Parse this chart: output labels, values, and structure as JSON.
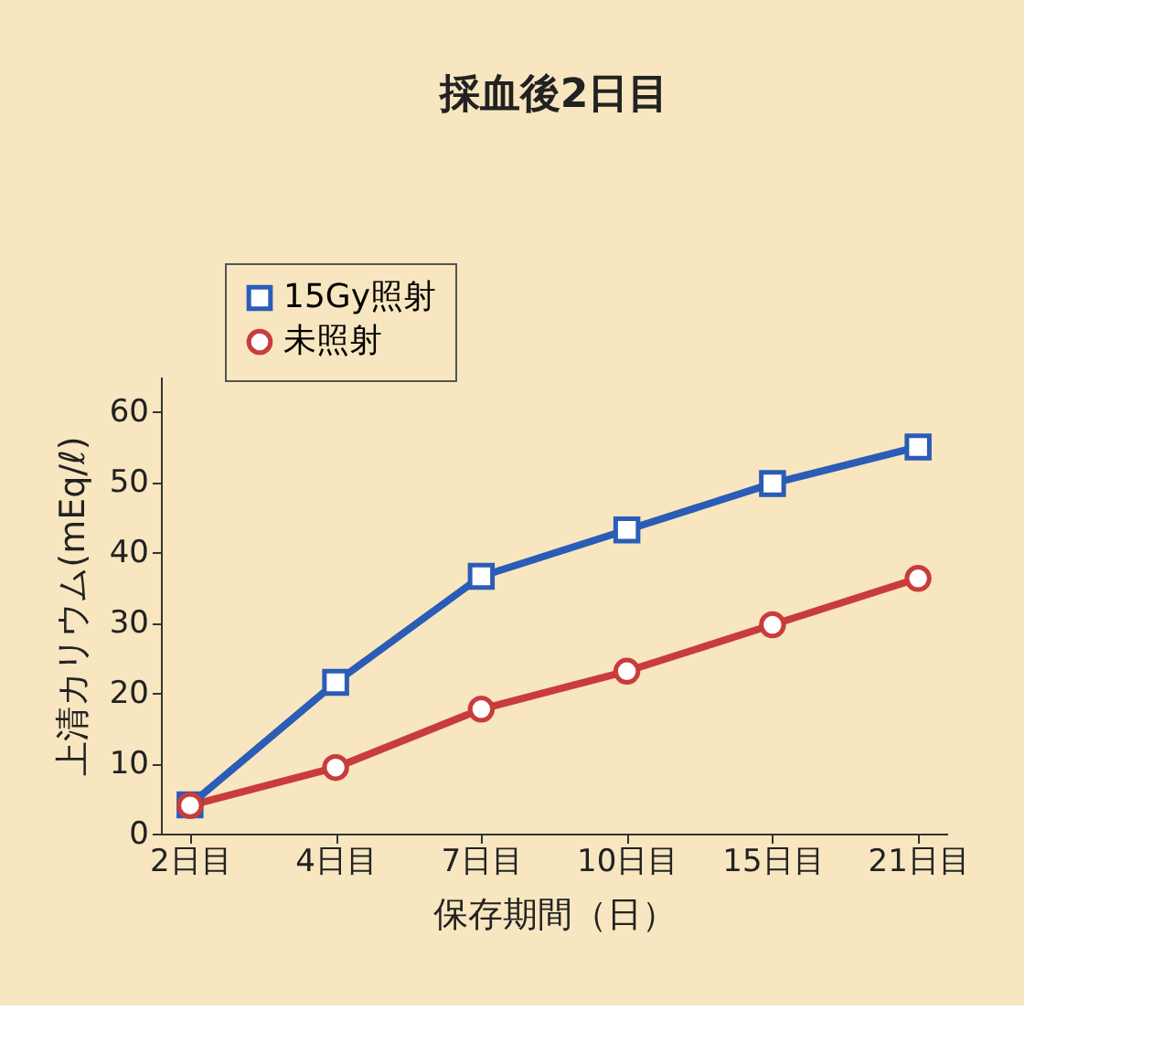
{
  "chart_data": {
    "type": "line",
    "title": "採血後2日目",
    "xlabel": "保存期間（日）",
    "ylabel": "上清カリウム(mEq/ℓ)",
    "categories": [
      "2日目",
      "4日目",
      "7日目",
      "10日目",
      "15日目",
      "21日目"
    ],
    "series": [
      {
        "name": "15Gy照射",
        "color": "#2a5cb8",
        "marker": "square",
        "values": [
          4.1,
          21.5,
          36.6,
          43.2,
          49.8,
          55
        ]
      },
      {
        "name": "未照射",
        "color": "#c83c3c",
        "marker": "circle",
        "values": [
          4,
          9.4,
          17.7,
          23.1,
          29.7,
          36.3
        ]
      }
    ],
    "ylim": [
      0,
      65
    ],
    "yticks": [
      0,
      10,
      20,
      30,
      40,
      50,
      60
    ],
    "grid": false,
    "legend": "top left",
    "line_style": "solid"
  }
}
